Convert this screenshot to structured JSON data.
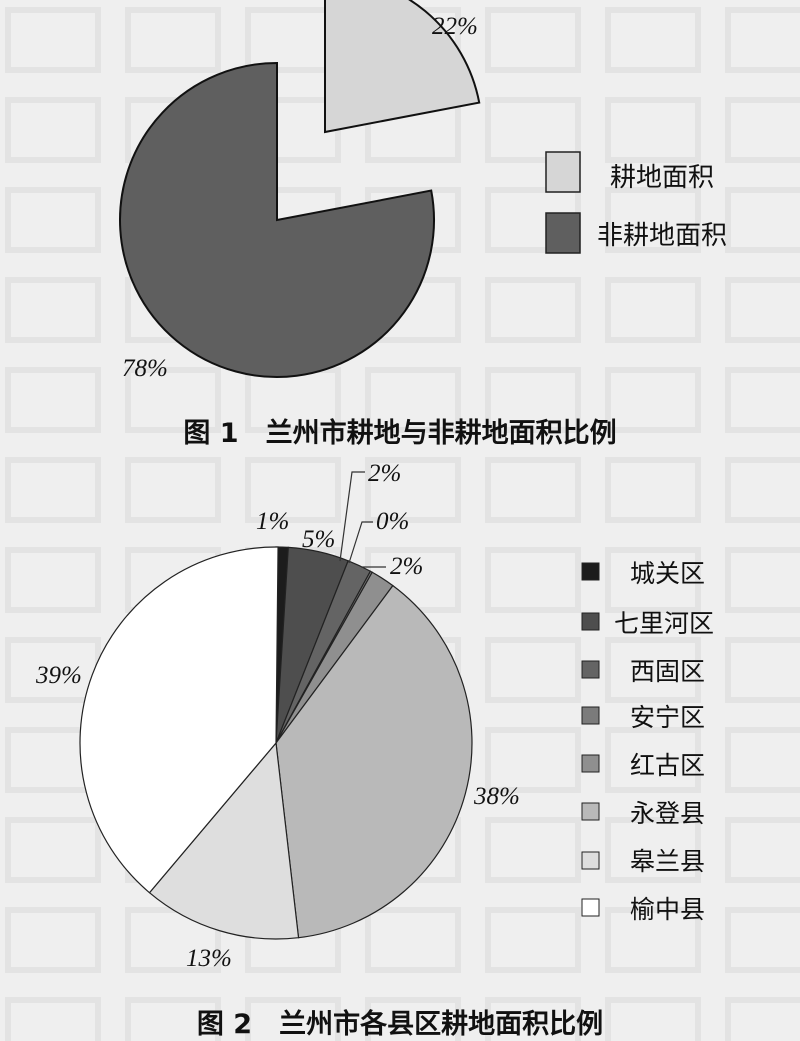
{
  "chart_data": [
    {
      "type": "pie",
      "caption": "图 1　兰州市耕地与非耕地面积比例",
      "categories": [
        "耕地面积",
        "非耕地面积"
      ],
      "values": [
        22,
        78
      ],
      "data_labels": [
        "22%",
        "78%"
      ],
      "colors": [
        "#d6d6d6",
        "#5f5f5f"
      ],
      "exploded": "耕地面积",
      "legend_position": "right"
    },
    {
      "type": "pie",
      "caption": "图 2　兰州市各县区耕地面积比例",
      "categories": [
        "城关区",
        "七里河区",
        "西固区",
        "安宁区",
        "红古区",
        "永登县",
        "皋兰县",
        "榆中县"
      ],
      "values": [
        1,
        5,
        2,
        0,
        2,
        38,
        13,
        39
      ],
      "data_labels": [
        "1%",
        "5%",
        "2%",
        "0%",
        "2%",
        "38%",
        "13%",
        "39%"
      ],
      "colors": [
        "#1c1c1c",
        "#4e4e4e",
        "#646464",
        "#7b7b7b",
        "#8f8f8f",
        "#b9b9b9",
        "#dedede",
        "#ffffff"
      ],
      "legend_position": "right"
    }
  ]
}
